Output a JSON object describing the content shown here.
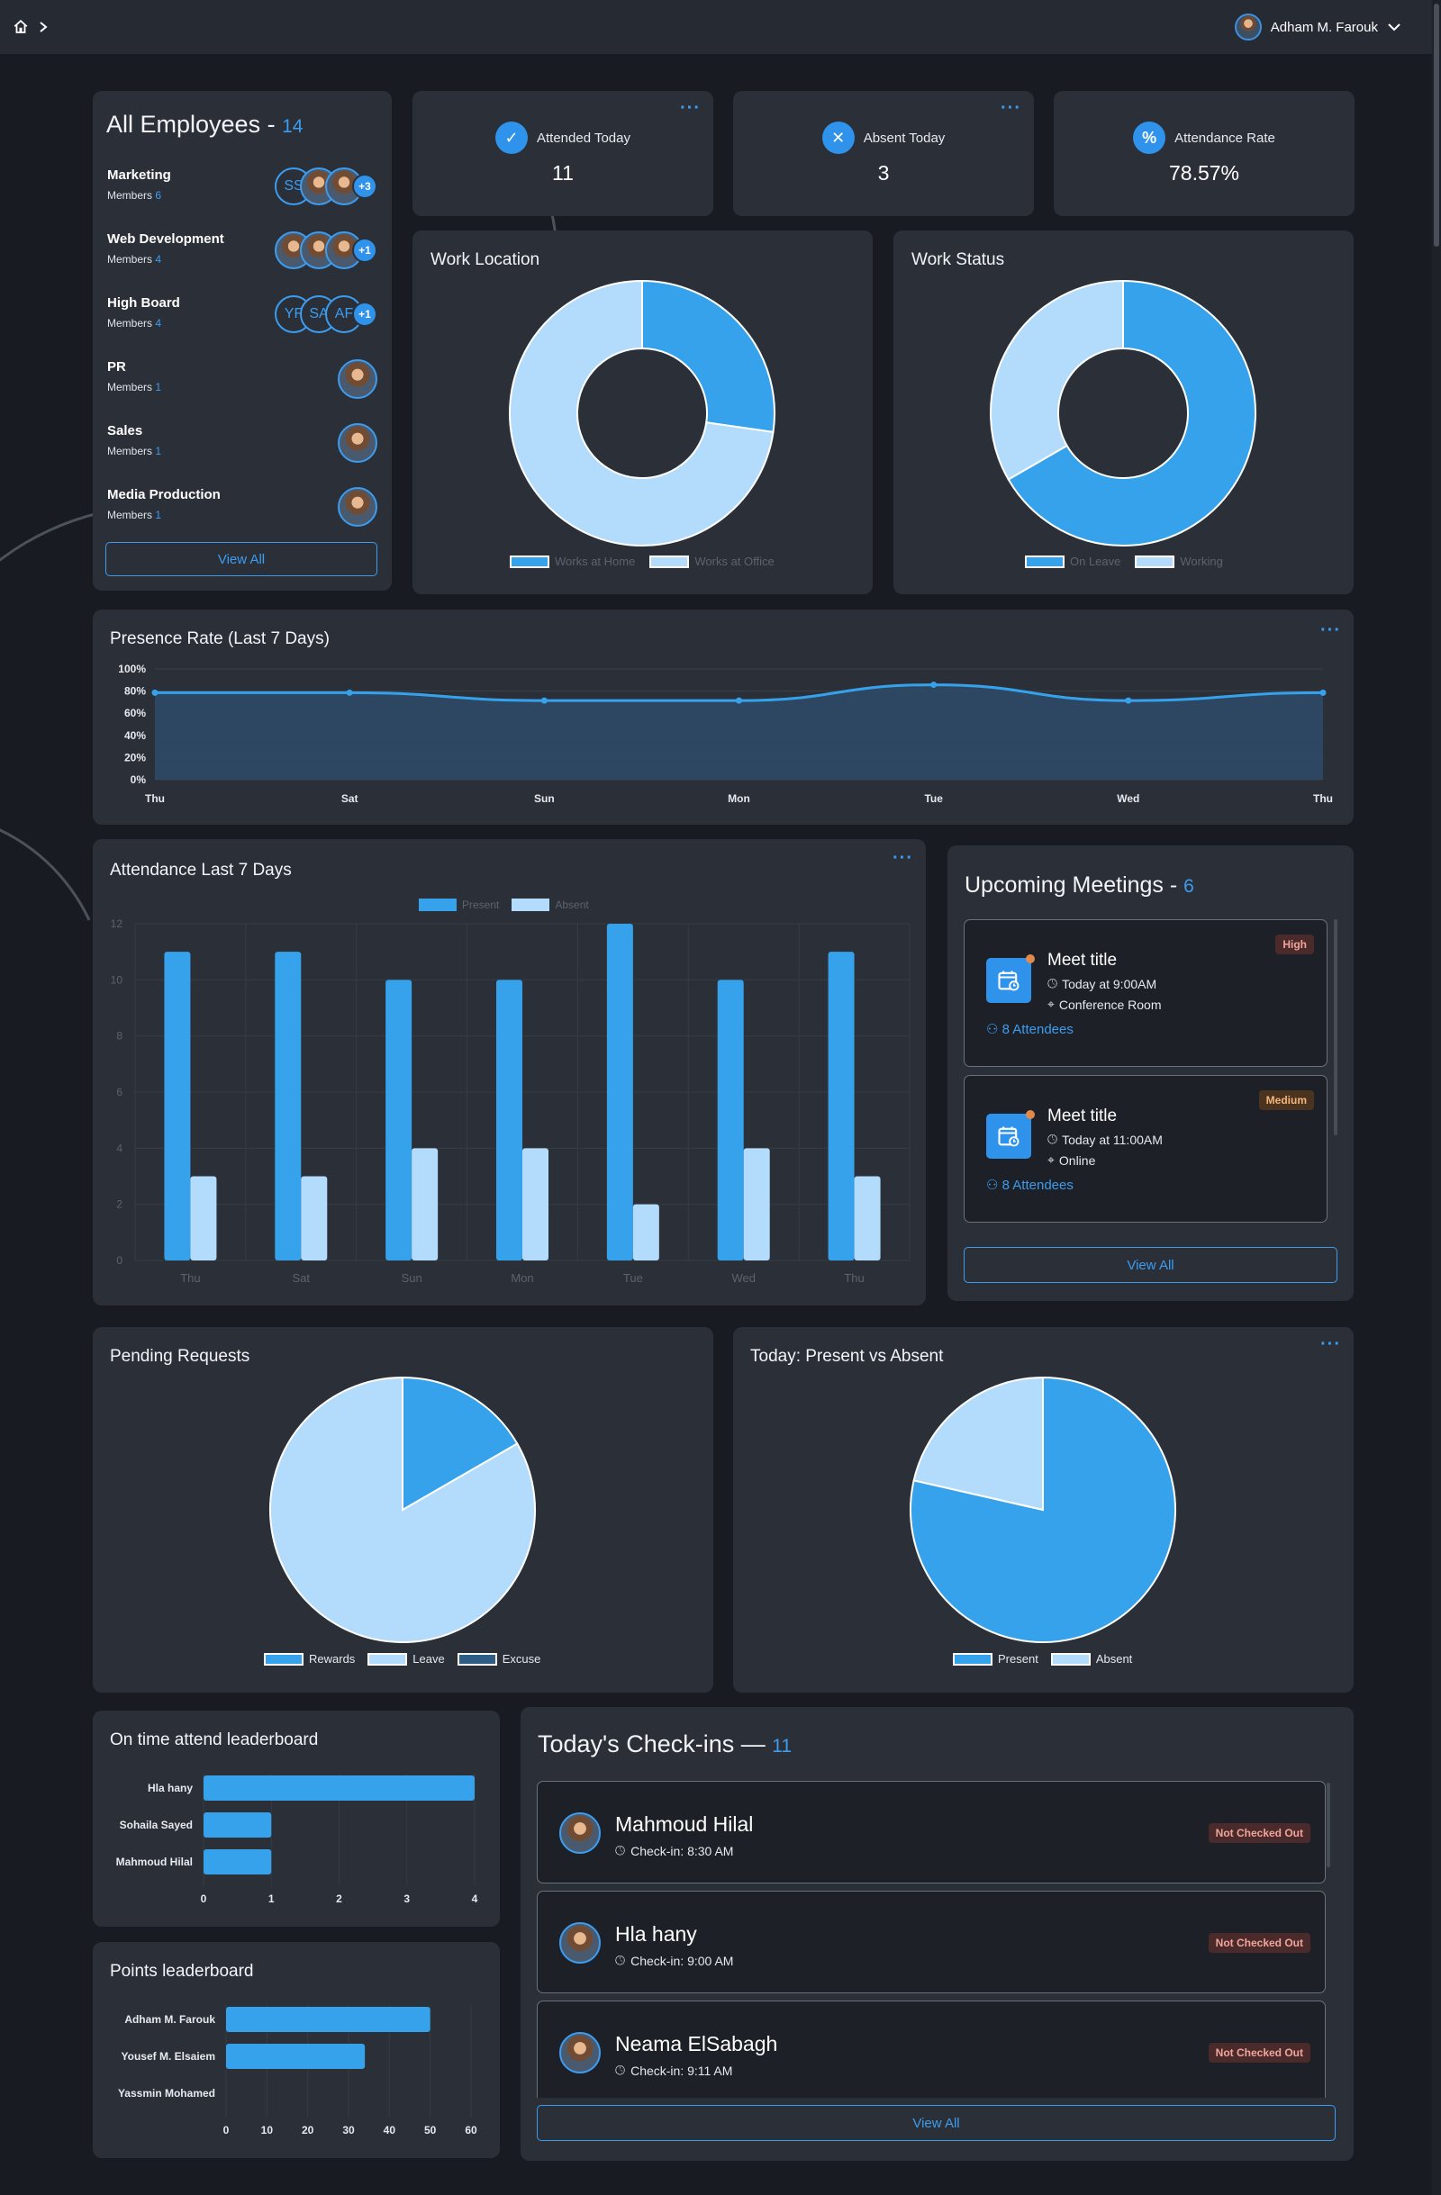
{
  "header": {
    "user_name": "Adham M. Farouk"
  },
  "employees": {
    "title": "All Employees -",
    "count": "14",
    "members_label": "Members",
    "view_all": "View All",
    "departments": [
      {
        "name": "Marketing",
        "count": "6",
        "avatars": [
          "SS",
          "",
          ""
        ],
        "extra": "+3"
      },
      {
        "name": "Web Development",
        "count": "4",
        "avatars": [
          "",
          "",
          ""
        ],
        "extra": "+1"
      },
      {
        "name": "High Board",
        "count": "4",
        "avatars": [
          "YF",
          "SA",
          "AF"
        ],
        "extra": "+1"
      },
      {
        "name": "PR",
        "count": "1",
        "avatars": [
          ""
        ],
        "extra": ""
      },
      {
        "name": "Sales",
        "count": "1",
        "avatars": [
          ""
        ],
        "extra": ""
      },
      {
        "name": "Media Production",
        "count": "1",
        "avatars": [
          ""
        ],
        "extra": ""
      }
    ]
  },
  "stats": {
    "attended": {
      "label": "Attended Today",
      "value": "11"
    },
    "absent": {
      "label": "Absent Today",
      "value": "3"
    },
    "rate": {
      "label": "Attendance Rate",
      "value": "78.57%"
    }
  },
  "colors": {
    "primary": "#36a2eb",
    "light": "#b3dbfb",
    "dark": "#2f5d85",
    "card": "#2b3038",
    "badge_text": "#f0a59a"
  },
  "work_location": {
    "title": "Work Location",
    "legend": [
      "Works at Home",
      "Works at Office"
    ]
  },
  "work_status": {
    "title": "Work Status",
    "legend": [
      "On Leave",
      "Working"
    ]
  },
  "presence": {
    "title": "Presence Rate (Last 7 Days)"
  },
  "attendance": {
    "title": "Attendance Last 7 Days",
    "legend": [
      "Present",
      "Absent"
    ]
  },
  "meetings": {
    "title": "Upcoming Meetings -",
    "count": "6",
    "view_all": "View All",
    "items": [
      {
        "title": "Meet title",
        "time": "Today at 9:00AM",
        "location": "Conference Room",
        "attendees": "8 Attendees",
        "priority": "High"
      },
      {
        "title": "Meet title",
        "time": "Today at 11:00AM",
        "location": "Online",
        "attendees": "8 Attendees",
        "priority": "Medium"
      }
    ]
  },
  "pending": {
    "title": "Pending Requests",
    "legend": [
      "Rewards",
      "Leave",
      "Excuse"
    ]
  },
  "today": {
    "title": "Today: Present vs Absent",
    "legend": [
      "Present",
      "Absent"
    ]
  },
  "ontime": {
    "title": "On time attend leaderboard"
  },
  "points": {
    "title": "Points leaderboard"
  },
  "checkins": {
    "title": "Today's Check-ins —",
    "count": "11",
    "view_all": "View All",
    "status": "Not Checked Out",
    "items": [
      {
        "name": "Mahmoud Hilal",
        "time": "Check-in: 8:30 AM"
      },
      {
        "name": "Hla hany",
        "time": "Check-in: 9:00 AM"
      },
      {
        "name": "Neama ElSabagh",
        "time": "Check-in: 9:11 AM"
      }
    ]
  },
  "chart_data": [
    {
      "type": "pie",
      "variant": "doughnut",
      "title": "Work Location",
      "labels": [
        "Works at Home",
        "Works at Office"
      ],
      "values": [
        3,
        8
      ],
      "colors": [
        "#36a2eb",
        "#b3dbfb"
      ]
    },
    {
      "type": "pie",
      "variant": "doughnut",
      "title": "Work Status",
      "labels": [
        "On Leave",
        "Working"
      ],
      "values": [
        2,
        1
      ],
      "colors": [
        "#36a2eb",
        "#b3dbfb"
      ]
    },
    {
      "type": "area",
      "title": "Presence Rate (Last 7 Days)",
      "categories": [
        "Thu",
        "Sat",
        "Sun",
        "Mon",
        "Tue",
        "Wed",
        "Thu"
      ],
      "values": [
        78.57,
        78.57,
        71.43,
        71.43,
        85.71,
        71.43,
        78.57
      ],
      "yticks": [
        "0%",
        "20%",
        "40%",
        "60%",
        "80%",
        "100%"
      ],
      "ylim": [
        0,
        100
      ]
    },
    {
      "type": "bar",
      "title": "Attendance Last 7 Days",
      "categories": [
        "Thu",
        "Sat",
        "Sun",
        "Mon",
        "Tue",
        "Wed",
        "Thu"
      ],
      "series": [
        {
          "name": "Present",
          "values": [
            11,
            11,
            10,
            10,
            12,
            10,
            11
          ]
        },
        {
          "name": "Absent",
          "values": [
            3,
            3,
            4,
            4,
            2,
            4,
            3
          ]
        }
      ],
      "ylim": [
        0,
        12
      ],
      "yticks": [
        "0",
        "2",
        "4",
        "6",
        "8",
        "10",
        "12"
      ]
    },
    {
      "type": "pie",
      "title": "Pending Requests",
      "labels": [
        "Rewards",
        "Leave",
        "Excuse"
      ],
      "values": [
        1,
        5,
        0
      ],
      "colors": [
        "#36a2eb",
        "#b3dbfb",
        "#2f5d85"
      ]
    },
    {
      "type": "pie",
      "title": "Today: Present vs Absent",
      "labels": [
        "Present",
        "Absent"
      ],
      "values": [
        11,
        3
      ],
      "colors": [
        "#36a2eb",
        "#b3dbfb"
      ]
    },
    {
      "type": "bar",
      "orientation": "horizontal",
      "title": "On time attend leaderboard",
      "categories": [
        "Hla hany",
        "Sohaila Sayed",
        "Mahmoud Hilal"
      ],
      "values": [
        4,
        1,
        1
      ],
      "xlim": [
        0,
        4
      ],
      "xticks": [
        "0",
        "1",
        "2",
        "3",
        "4"
      ]
    },
    {
      "type": "bar",
      "orientation": "horizontal",
      "title": "Points leaderboard",
      "categories": [
        "Adham M. Farouk",
        "Yousef M. Elsaiem",
        "Yassmin Mohamed"
      ],
      "values": [
        50,
        34,
        0
      ],
      "xlim": [
        0,
        60
      ],
      "xticks": [
        "0",
        "10",
        "20",
        "30",
        "40",
        "50",
        "60"
      ]
    }
  ]
}
